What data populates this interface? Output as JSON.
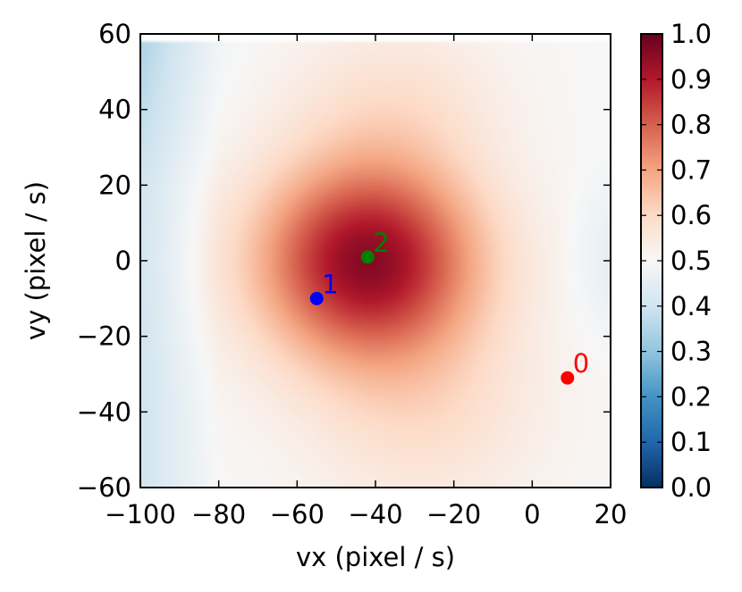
{
  "chart_data": {
    "type": "heatmap",
    "xlabel": "vx (pixel / s)",
    "ylabel": "vy (pixel / s)",
    "xlim": [
      -100,
      20
    ],
    "ylim": [
      60,
      -60
    ],
    "xticks": [
      -100,
      -80,
      -60,
      -40,
      -20,
      0,
      20
    ],
    "xtick_labels": [
      "−100",
      "−80",
      "−60",
      "−40",
      "−20",
      "0",
      "20"
    ],
    "yticks": [
      -60,
      -40,
      -20,
      0,
      20,
      40,
      60
    ],
    "ytick_labels": [
      "−60",
      "−40",
      "−20",
      "0",
      "20",
      "40",
      "60"
    ],
    "colorbar": {
      "colormap": "RdBu_r",
      "range": [
        0,
        1
      ],
      "ticks": [
        0,
        0.1,
        0.2,
        0.3,
        0.4,
        0.5,
        0.6,
        0.7,
        0.8,
        0.9,
        1.0
      ],
      "tick_labels": [
        "0.0",
        "0.1",
        "0.2",
        "0.3",
        "0.4",
        "0.5",
        "0.6",
        "0.7",
        "0.8",
        "0.9",
        "1.0"
      ]
    },
    "field": {
      "peak": [
        -42,
        0
      ],
      "data_extent_y_max": 58
    },
    "points": [
      {
        "label": "0",
        "x": 9,
        "y": -31,
        "color": "#ff0000"
      },
      {
        "label": "1",
        "x": -55,
        "y": -10,
        "color": "#0000ff"
      },
      {
        "label": "2",
        "x": -42,
        "y": 1,
        "color": "#008000"
      }
    ]
  }
}
